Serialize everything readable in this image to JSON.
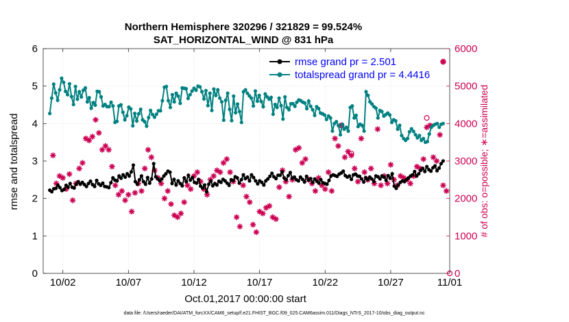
{
  "chart_data": {
    "type": "line",
    "title_line1": "Northern Hemisphere 320296 / 321829 = 99.524%",
    "title_line2": "SAT_HORIZONTAL_WIND @ 831 hPa",
    "xlabel": "Oct.01,2017 00:00:00 start",
    "ylabel_left": "rmse and totalspread",
    "ylabel_right": "# of obs: o=possible; ∗=assimilated",
    "footer": "data file: /Users/raeder/DAI/ATM_forcXX/CAM6_setup/f.e21.FHIST_BGC.f09_025.CAM6assim.011/Diags_NTrS_2017-10/obs_diag_output.nc",
    "xlim": [
      0.5,
      31.5
    ],
    "ylim_left": [
      0,
      6
    ],
    "ylim_right": [
      0,
      6000
    ],
    "x_ticks": [
      2,
      7,
      12,
      17,
      22,
      27,
      32
    ],
    "x_tick_labels": [
      "10/02",
      "10/07",
      "10/12",
      "10/17",
      "10/22",
      "10/27",
      "11/01"
    ],
    "y_ticks_left": [
      0,
      1,
      2,
      3,
      4,
      5,
      6
    ],
    "y_ticks_right": [
      0,
      1000,
      2000,
      3000,
      4000,
      5000,
      6000
    ],
    "colors": {
      "rmse": "#000000",
      "spread": "#008080",
      "obs": "#cc0052"
    },
    "legend": {
      "rmse_label": "rmse grand pr = 2.501",
      "spread_label": "totalspread grand pr = 4.4416",
      "rmse_label_color": "#0000ff",
      "spread_label_color": "#0000ff"
    },
    "rmse": [
      2.22,
      2.18,
      2.26,
      2.27,
      2.35,
      2.29,
      2.21,
      2.24,
      2.35,
      2.3,
      2.4,
      2.3,
      2.28,
      2.38,
      2.45,
      2.38,
      2.43,
      2.37,
      2.32,
      2.4,
      2.46,
      2.37,
      2.32,
      2.48,
      2.39,
      2.35,
      2.41,
      2.32,
      2.31,
      2.29,
      2.42,
      2.55,
      2.49,
      2.47,
      2.6,
      2.54,
      2.63,
      2.57,
      2.66,
      2.6,
      2.71,
      2.89,
      2.45,
      2.38,
      2.5,
      2.6,
      2.45,
      2.38,
      2.56,
      2.41,
      2.52,
      2.93,
      2.58,
      2.52,
      2.47,
      2.52,
      2.6,
      2.66,
      2.73,
      2.7,
      2.4,
      2.51,
      2.36,
      2.47,
      2.4,
      2.34,
      2.55,
      2.45,
      2.62,
      2.49,
      2.56,
      2.43,
      2.41,
      2.51,
      2.33,
      2.28,
      2.36,
      2.18,
      2.38,
      2.46,
      2.34,
      2.4,
      2.36,
      2.46,
      2.43,
      2.51,
      2.47,
      2.41,
      2.35,
      2.5,
      2.48,
      2.58,
      2.55,
      2.41,
      2.5,
      2.63,
      2.53,
      2.57,
      2.47,
      2.63,
      2.56,
      2.47,
      2.39,
      2.47,
      2.43,
      2.36,
      2.47,
      2.52,
      2.59,
      2.67,
      2.58,
      2.53,
      2.62,
      2.62,
      2.71,
      2.55,
      2.5,
      2.61,
      2.69,
      2.54,
      2.57,
      2.5,
      2.47,
      2.57,
      2.51,
      2.44,
      2.59,
      2.49,
      2.53,
      2.43,
      2.52,
      2.46,
      2.41,
      2.5,
      2.42,
      2.4,
      2.38,
      2.48,
      2.6,
      2.63,
      2.61,
      2.59,
      2.65,
      2.68,
      2.73,
      2.61,
      2.57,
      2.6,
      2.51,
      2.63,
      2.65,
      2.6,
      2.59,
      2.52,
      2.44,
      2.56,
      2.5,
      2.57,
      2.52,
      2.45,
      2.6,
      2.58,
      2.52,
      2.6,
      2.57,
      2.48,
      2.61,
      2.54,
      2.66,
      2.33,
      2.27,
      2.36,
      2.43,
      2.47,
      2.45,
      2.5,
      2.55,
      2.6,
      2.63,
      2.72,
      2.6,
      2.66,
      2.75,
      2.8,
      2.72,
      2.85,
      2.77,
      2.73,
      2.82,
      2.87,
      2.74,
      2.81,
      2.93,
      3.0
    ],
    "spread": [
      4.27,
      4.68,
      5.05,
      4.82,
      4.62,
      4.9,
      5.21,
      5.1,
      4.86,
      4.77,
      5.06,
      4.72,
      4.51,
      4.99,
      4.65,
      4.85,
      4.71,
      4.89,
      4.95,
      4.58,
      4.69,
      4.41,
      4.56,
      4.49,
      4.86,
      4.85,
      4.71,
      4.47,
      4.51,
      4.45,
      4.45,
      4.57,
      4.47,
      4.03,
      4.06,
      4.47,
      4.5,
      4.3,
      4.1,
      4.21,
      4.44,
      4.39,
      3.94,
      4.27,
      4.07,
      4.26,
      4.38,
      4.1,
      4.05,
      3.93,
      4.16,
      4.35,
      4.24,
      4.17,
      4.25,
      4.34,
      4.34,
      4.61,
      4.97,
      4.99,
      4.61,
      4.43,
      4.77,
      4.58,
      4.81,
      4.73,
      4.54,
      4.95,
      4.94,
      4.93,
      4.67,
      4.77,
      4.87,
      4.94,
      4.89,
      5.0,
      4.98,
      4.85,
      4.66,
      4.88,
      4.48,
      4.81,
      4.35,
      4.92,
      4.75,
      4.9,
      4.68,
      4.58,
      4.09,
      4.62,
      4.81,
      4.38,
      4.08,
      4.73,
      4.29,
      4.52,
      4.32,
      4.03,
      4.85,
      4.9,
      4.81,
      4.74,
      4.68,
      4.47,
      4.87,
      4.6,
      4.75,
      4.59,
      4.45,
      4.79,
      4.71,
      4.65,
      4.7,
      4.25,
      4.51,
      4.43,
      4.68,
      4.48,
      4.12,
      4.71,
      4.43,
      4.37,
      4.53,
      4.53,
      4.46,
      4.57,
      4.63,
      4.61,
      4.57,
      4.55,
      4.4,
      4.6,
      4.46,
      4.37,
      4.22,
      4.45,
      4.4,
      4.28,
      4.26,
      4.23,
      4.11,
      4.2,
      4.15,
      3.8,
      4.0,
      4.05,
      3.95,
      3.7,
      3.98,
      3.85,
      3.9,
      3.8,
      4.43,
      4.47,
      4.15,
      4.22,
      3.92,
      3.98,
      3.95,
      3.8,
      4.85,
      4.75,
      4.58,
      4.52,
      4.45,
      4.41,
      4.15,
      4.35,
      4.32,
      4.2,
      4.24,
      4.28,
      4.23,
      4.03,
      4.1,
      4.07,
      3.85,
      3.95,
      3.68,
      3.6,
      3.55,
      3.6,
      3.78,
      3.86,
      3.79,
      3.7,
      3.62,
      3.68,
      3.55,
      3.6,
      3.5,
      3.52,
      3.72,
      3.9,
      3.95,
      3.98,
      4.0,
      3.9,
      3.98,
      4.0
    ],
    "obs_assim": [
      [
        1.25,
        3150
      ],
      [
        1.5,
        2400
      ],
      [
        1.75,
        2600
      ],
      [
        2.0,
        2550
      ],
      [
        2.25,
        2250
      ],
      [
        2.5,
        2650
      ],
      [
        2.75,
        1950
      ],
      [
        3.0,
        2400
      ],
      [
        3.25,
        2800
      ],
      [
        3.5,
        2950
      ],
      [
        3.75,
        3600
      ],
      [
        4.0,
        3550
      ],
      [
        4.25,
        3650
      ],
      [
        4.5,
        4100
      ],
      [
        4.75,
        3750
      ],
      [
        5.0,
        3300
      ],
      [
        5.25,
        3400
      ],
      [
        5.5,
        3300
      ],
      [
        5.75,
        2850
      ],
      [
        6.0,
        2350
      ],
      [
        6.25,
        2100
      ],
      [
        6.5,
        2200
      ],
      [
        6.75,
        1950
      ],
      [
        7.0,
        2100
      ],
      [
        7.25,
        1650
      ],
      [
        7.5,
        2150
      ],
      [
        7.75,
        2400
      ],
      [
        8.0,
        2200
      ],
      [
        8.25,
        2800
      ],
      [
        8.5,
        3300
      ],
      [
        8.75,
        3100
      ],
      [
        9.0,
        2750
      ],
      [
        9.25,
        2550
      ],
      [
        9.5,
        2400
      ],
      [
        9.75,
        2000
      ],
      [
        10.0,
        2200
      ],
      [
        10.25,
        1850
      ],
      [
        10.5,
        1550
      ],
      [
        10.75,
        1500
      ],
      [
        11.0,
        1600
      ],
      [
        11.25,
        1900
      ],
      [
        11.5,
        2350
      ],
      [
        11.75,
        2250
      ],
      [
        12.0,
        2600
      ],
      [
        12.25,
        2700
      ],
      [
        12.5,
        2450
      ],
      [
        12.75,
        2250
      ],
      [
        13.0,
        2100
      ],
      [
        13.25,
        2500
      ],
      [
        13.5,
        2600
      ],
      [
        13.75,
        2750
      ],
      [
        14.0,
        2700
      ],
      [
        14.25,
        2950
      ],
      [
        14.5,
        3050
      ],
      [
        14.75,
        2700
      ],
      [
        15.0,
        2450
      ],
      [
        15.25,
        1500
      ],
      [
        15.5,
        1250
      ],
      [
        15.75,
        2350
      ],
      [
        16.0,
        2050
      ],
      [
        16.25,
        1900
      ],
      [
        16.5,
        1300
      ],
      [
        16.75,
        1100
      ],
      [
        17.0,
        1650
      ],
      [
        17.25,
        1600
      ],
      [
        17.5,
        1750
      ],
      [
        17.75,
        1800
      ],
      [
        18.0,
        1500
      ],
      [
        18.25,
        1450
      ],
      [
        18.5,
        2300
      ],
      [
        18.75,
        2750
      ],
      [
        19.0,
        2450
      ],
      [
        19.25,
        2050
      ],
      [
        19.5,
        2500
      ],
      [
        19.75,
        3300
      ],
      [
        20.0,
        3350
      ],
      [
        20.25,
        2950
      ],
      [
        20.5,
        3050
      ],
      [
        20.75,
        2500
      ],
      [
        21.0,
        2400
      ],
      [
        21.25,
        2200
      ],
      [
        21.5,
        2550
      ],
      [
        21.75,
        2350
      ],
      [
        22.0,
        2250
      ],
      [
        22.25,
        2700
      ],
      [
        22.5,
        2200
      ],
      [
        22.75,
        3600
      ],
      [
        23.0,
        3400
      ],
      [
        23.25,
        3950
      ],
      [
        23.5,
        3100
      ],
      [
        23.75,
        3250
      ],
      [
        24.0,
        3150
      ],
      [
        24.25,
        2800
      ],
      [
        24.5,
        2450
      ],
      [
        24.75,
        3600
      ],
      [
        25.0,
        2700
      ],
      [
        25.25,
        2500
      ],
      [
        25.5,
        2800
      ],
      [
        25.75,
        2400
      ],
      [
        26.0,
        3850
      ],
      [
        26.25,
        2350
      ],
      [
        26.5,
        2600
      ],
      [
        26.75,
        2400
      ],
      [
        27.0,
        2900
      ],
      [
        27.25,
        2500
      ],
      [
        27.5,
        2350
      ],
      [
        27.75,
        2600
      ],
      [
        28.0,
        2550
      ],
      [
        28.25,
        2500
      ],
      [
        28.5,
        2400
      ],
      [
        28.75,
        2600
      ],
      [
        29.0,
        2850
      ],
      [
        29.25,
        2800
      ],
      [
        29.5,
        3050
      ],
      [
        29.75,
        3900
      ],
      [
        30.0,
        3950
      ],
      [
        30.25,
        3100
      ],
      [
        30.5,
        3000
      ],
      [
        30.75,
        3700
      ],
      [
        31.0,
        2350
      ],
      [
        31.25,
        2200
      ],
      [
        31.0,
        5650
      ]
    ],
    "obs_possible": [
      [
        23.25,
        3950
      ],
      [
        24.0,
        3200
      ],
      [
        29.75,
        4150
      ],
      [
        31.0,
        5650
      ],
      [
        31.5,
        0
      ]
    ]
  }
}
